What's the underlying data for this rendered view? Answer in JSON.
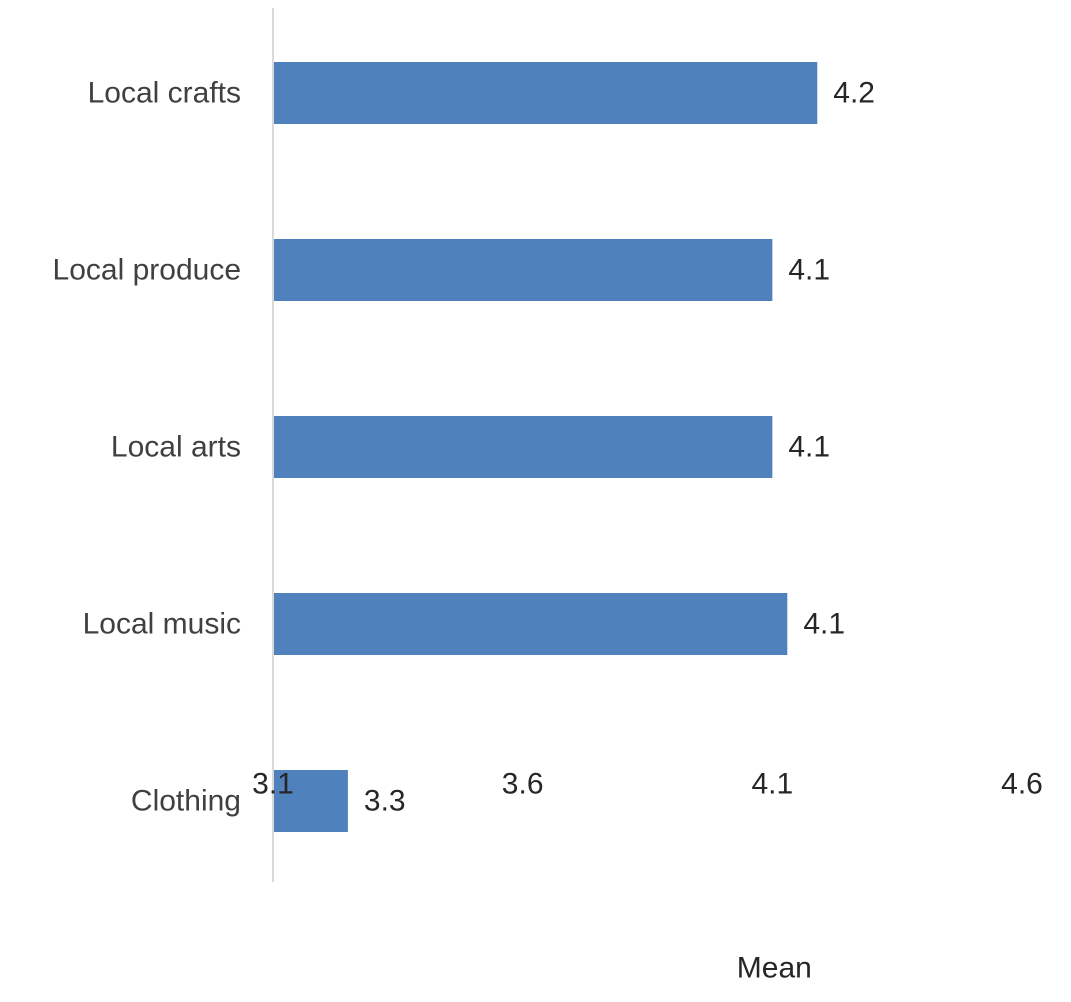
{
  "chart_data": {
    "type": "bar",
    "orientation": "horizontal",
    "categories": [
      "Local crafts",
      "Local produce",
      "Local arts",
      "Local music",
      "Clothing"
    ],
    "values": [
      4.19,
      4.1,
      4.1,
      4.13,
      3.25
    ],
    "data_labels": [
      "4.2",
      "4.1",
      "4.1",
      "4.1",
      "3.3"
    ],
    "xticks": [
      "3.1",
      "3.6",
      "4.1",
      "4.6"
    ],
    "xlim": [
      3.1,
      4.6
    ],
    "xlabel": "Mean",
    "ylabel": "",
    "title": "",
    "grid": false,
    "legend": "none",
    "bar_color": "#4f81bd",
    "axis_color": "#d9d9d9"
  }
}
